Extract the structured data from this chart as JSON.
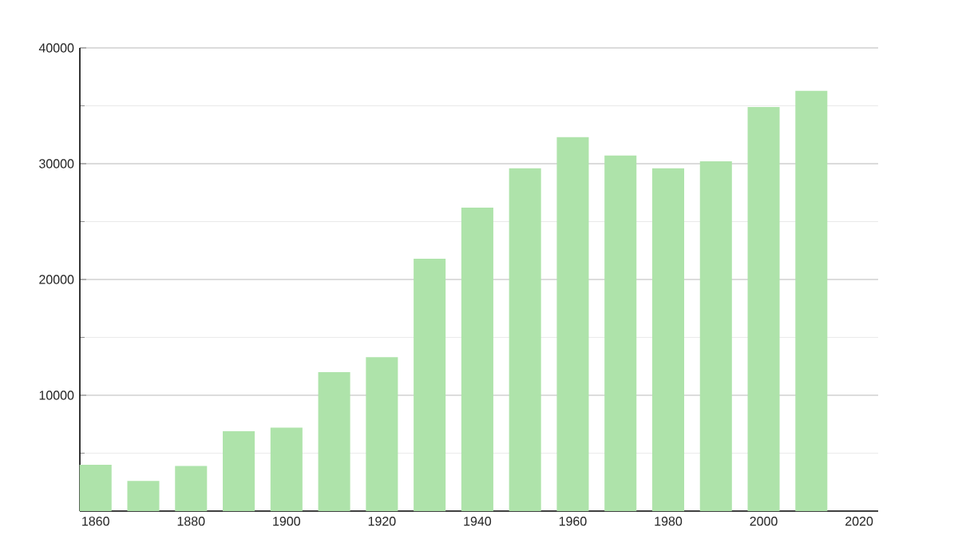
{
  "chart_data": {
    "type": "bar",
    "color": "#aee3aa",
    "x": [
      1860,
      1870,
      1880,
      1890,
      1900,
      1910,
      1920,
      1930,
      1940,
      1950,
      1960,
      1970,
      1980,
      1990,
      2000,
      2010
    ],
    "values": [
      4000,
      2600,
      3900,
      6900,
      7200,
      12000,
      13300,
      21800,
      26200,
      29600,
      32300,
      30700,
      29600,
      30200,
      34900,
      36300
    ],
    "xlim": [
      1856.7,
      2024
    ],
    "xticks": [
      1860,
      1880,
      1900,
      1920,
      1940,
      1960,
      1980,
      2000,
      2020
    ],
    "ylim": [
      0,
      40000
    ],
    "yticks": [
      {
        "value": 5000,
        "label": null
      },
      10000,
      {
        "value": 15000,
        "label": null
      },
      20000,
      {
        "value": 25000,
        "label": null
      },
      30000,
      {
        "value": 35000,
        "label": null
      },
      40000
    ],
    "grid": "y"
  }
}
